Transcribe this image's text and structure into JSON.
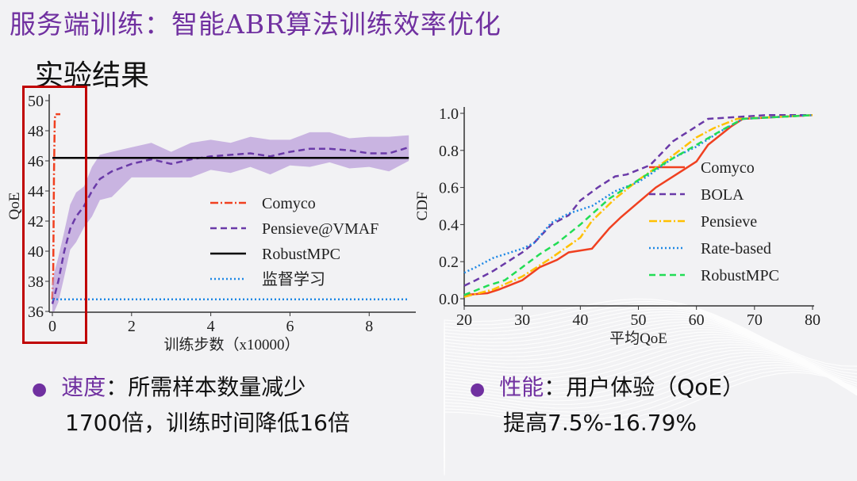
{
  "title": "服务端训练：智能ABR算法训练效率优化",
  "subtitle": "实验结果",
  "bullets": [
    {
      "key": "速度",
      "sep": "：",
      "line1": "所需样本数量减少",
      "line2": "1700倍，训练时间降低16倍"
    },
    {
      "key": "性能",
      "sep": "：",
      "line1": "用户体验（QoE）",
      "line2": "提高7.5%-16.79%"
    }
  ],
  "chart_data": [
    {
      "type": "line",
      "xlabel": "训练步数（x10000）",
      "ylabel": "QoE",
      "xlim": [
        -0.1,
        9
      ],
      "ylim": [
        36,
        50
      ],
      "xticks": [
        0,
        2,
        4,
        6,
        8
      ],
      "yticks": [
        36,
        38,
        40,
        42,
        44,
        46,
        48,
        50
      ],
      "legend": "center-right",
      "series": [
        {
          "name": "Comyco",
          "color": "#f04020",
          "dash": "10,3,2,3",
          "x": [
            0,
            0.02,
            0.04,
            0.06,
            0.08,
            0.2
          ],
          "y": [
            36.8,
            38,
            45,
            48.8,
            49.1,
            49.1
          ]
        },
        {
          "name": "Pensieve@VMAF",
          "color": "#6a3aa8",
          "dash": "8,5",
          "band": 1.0,
          "x": [
            0,
            0.05,
            0.15,
            0.3,
            0.45,
            0.6,
            0.8,
            1.0,
            1.2,
            1.5,
            2,
            2.5,
            3,
            3.5,
            4,
            4.5,
            5,
            5.5,
            6,
            6.5,
            7,
            7.5,
            8,
            8.5,
            9
          ],
          "y": [
            36.5,
            37,
            38,
            40,
            41.5,
            42.3,
            43,
            44,
            44.8,
            45.3,
            45.8,
            46.1,
            45.8,
            46.1,
            46.3,
            46.4,
            46.5,
            46.3,
            46.6,
            46.8,
            46.8,
            46.7,
            46.5,
            46.5,
            46.9
          ]
        },
        {
          "name": "RobustMPC",
          "color": "#000000",
          "dash": "",
          "x": [
            0,
            9
          ],
          "y": [
            46.2,
            46.2
          ]
        },
        {
          "name": "监督学习",
          "color": "#1e88e5",
          "dash": "2,3",
          "x": [
            0,
            9
          ],
          "y": [
            36.8,
            36.8
          ]
        }
      ]
    },
    {
      "type": "line",
      "xlabel": "平均QoE",
      "ylabel": "CDF",
      "xlim": [
        20,
        80
      ],
      "ylim": [
        0,
        1
      ],
      "xticks": [
        20,
        30,
        40,
        50,
        60,
        70,
        80
      ],
      "yticks": [
        0.0,
        0.2,
        0.4,
        0.6,
        0.8,
        1.0
      ],
      "legend": "center-right",
      "series": [
        {
          "name": "Comyco",
          "color": "#f04020",
          "dash": "",
          "x": [
            20,
            24,
            26,
            30,
            33,
            36,
            38,
            42,
            45,
            47,
            50,
            53,
            57,
            60,
            62,
            66,
            68,
            80
          ],
          "y": [
            0.02,
            0.03,
            0.05,
            0.1,
            0.17,
            0.21,
            0.25,
            0.27,
            0.38,
            0.44,
            0.52,
            0.6,
            0.68,
            0.74,
            0.83,
            0.93,
            0.97,
            0.99
          ]
        },
        {
          "name": "BOLA",
          "color": "#6a3aa8",
          "dash": "8,5",
          "x": [
            20,
            22,
            25,
            30,
            32,
            35,
            38,
            40,
            43,
            46,
            48,
            52,
            56,
            60,
            62,
            72,
            80
          ],
          "y": [
            0.07,
            0.1,
            0.15,
            0.25,
            0.3,
            0.4,
            0.45,
            0.53,
            0.6,
            0.66,
            0.67,
            0.72,
            0.85,
            0.93,
            0.97,
            0.99,
            0.99
          ]
        },
        {
          "name": "Pensieve",
          "color": "#ffc000",
          "dash": "10,3,2,3",
          "x": [
            20,
            25,
            30,
            35,
            40,
            42,
            46,
            50,
            55,
            60,
            63,
            67,
            80
          ],
          "y": [
            0.01,
            0.05,
            0.12,
            0.22,
            0.33,
            0.42,
            0.54,
            0.64,
            0.75,
            0.87,
            0.92,
            0.97,
            0.99
          ]
        },
        {
          "name": "Rate-based",
          "color": "#1e88e5",
          "dash": "2,3",
          "x": [
            20,
            22,
            25,
            30,
            32,
            35,
            38,
            42,
            46,
            50,
            52,
            56,
            60,
            64,
            68,
            80
          ],
          "y": [
            0.14,
            0.17,
            0.22,
            0.27,
            0.3,
            0.41,
            0.46,
            0.5,
            0.58,
            0.63,
            0.67,
            0.76,
            0.82,
            0.9,
            0.97,
            0.99
          ]
        },
        {
          "name": "RobustMPC",
          "color": "#22dd55",
          "dash": "8,5",
          "x": [
            20,
            24,
            27,
            30,
            33,
            36,
            40,
            45,
            50,
            55,
            60,
            65,
            68,
            80
          ],
          "y": [
            0.02,
            0.07,
            0.1,
            0.17,
            0.24,
            0.3,
            0.4,
            0.54,
            0.64,
            0.74,
            0.83,
            0.92,
            0.97,
            0.99
          ]
        }
      ]
    }
  ]
}
